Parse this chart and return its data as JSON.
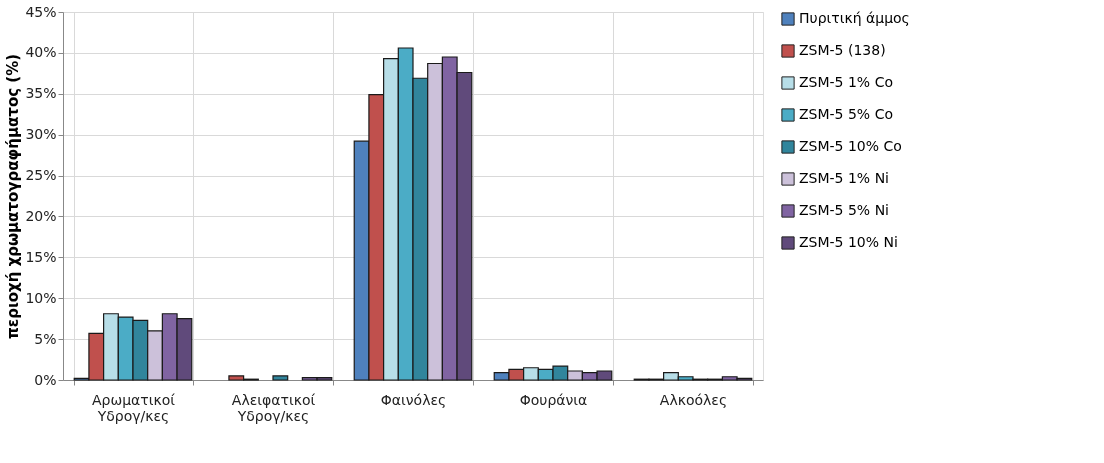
{
  "chart_data": {
    "type": "bar",
    "ylabel": "περιοχή χρωματογραφήματος (%)",
    "categories": [
      "Αρωματικοί Υδρογ/κες",
      "Αλειφατικοί Υδρογ/κες",
      "Φαινόλες",
      "Φουράνια",
      "Αλκοόλες"
    ],
    "series": [
      {
        "name": "Πυριτική άμμος",
        "color": "#4f81bd",
        "values": [
          0.2,
          null,
          29.2,
          0.9,
          0.1
        ]
      },
      {
        "name": "ZSM-5 (138)",
        "color": "#c0504d",
        "values": [
          5.7,
          0.5,
          34.9,
          1.3,
          0.1
        ]
      },
      {
        "name": "ZSM-5 1% Co",
        "color": "#b7dee8",
        "values": [
          8.1,
          0.1,
          39.3,
          1.5,
          0.9
        ]
      },
      {
        "name": "ZSM-5 5% Co",
        "color": "#4bacc6",
        "values": [
          7.7,
          null,
          40.6,
          1.3,
          0.4
        ]
      },
      {
        "name": "ZSM-5 10% Co",
        "color": "#31859c",
        "values": [
          7.3,
          0.5,
          36.9,
          1.7,
          0.1
        ]
      },
      {
        "name": "ZSM-5 1% Ni",
        "color": "#ccc1da",
        "values": [
          6.0,
          null,
          38.7,
          1.1,
          0.1
        ]
      },
      {
        "name": "ZSM-5 5% Ni",
        "color": "#8064a2",
        "values": [
          8.1,
          0.3,
          39.5,
          0.9,
          0.4
        ]
      },
      {
        "name": "ZSM-5 10% Ni",
        "color": "#604a7b",
        "values": [
          7.5,
          0.3,
          37.6,
          1.1,
          0.2
        ]
      }
    ],
    "ylim": [
      0,
      45
    ],
    "yticks": [
      {
        "value": 0,
        "label": "0%"
      },
      {
        "value": 5,
        "label": "5%"
      },
      {
        "value": 10,
        "label": "10%"
      },
      {
        "value": 15,
        "label": "15%"
      },
      {
        "value": 20,
        "label": "20%"
      },
      {
        "value": 25,
        "label": "25%"
      },
      {
        "value": 30,
        "label": "30%"
      },
      {
        "value": 35,
        "label": "35%"
      },
      {
        "value": 40,
        "label": "40%"
      },
      {
        "value": 45,
        "label": "45%"
      }
    ],
    "grid": true,
    "legend": "right"
  }
}
